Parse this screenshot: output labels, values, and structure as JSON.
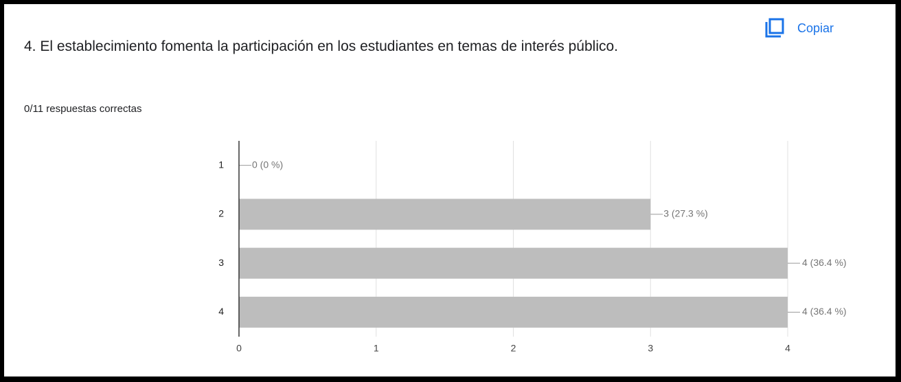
{
  "copy_button": "Copiar",
  "chart_data": {
    "type": "bar",
    "orientation": "horizontal",
    "title": "4. El establecimiento fomenta la participación en los estudiantes en temas de interés público.",
    "subtitle": "0/11 respuestas correctas",
    "categories": [
      "1",
      "2",
      "3",
      "4"
    ],
    "values": [
      0,
      3,
      4,
      4
    ],
    "value_labels": [
      "0 (0 %)",
      "3 (27.3 %)",
      "4 (36.4 %)",
      "4 (36.4 %)"
    ],
    "color": "#bdbdbd",
    "xlim": [
      0,
      4
    ],
    "xticks": [
      0,
      1,
      2,
      3,
      4
    ],
    "grid": true
  }
}
